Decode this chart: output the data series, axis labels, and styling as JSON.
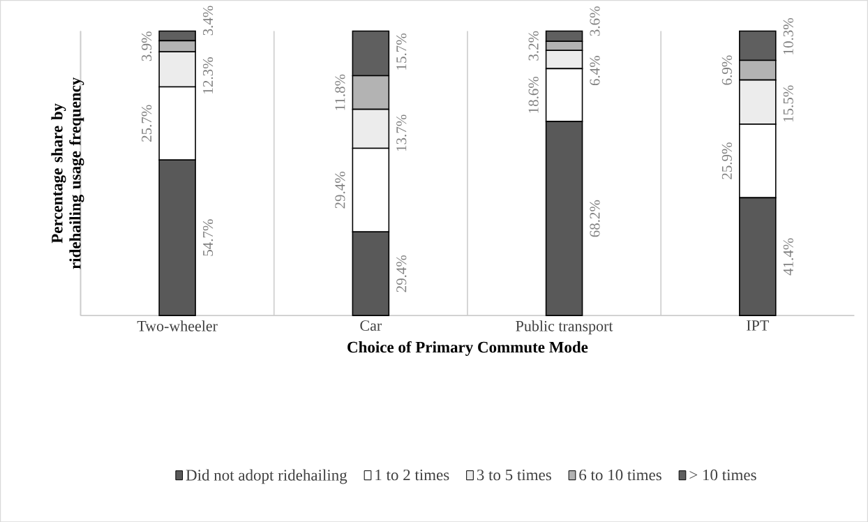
{
  "chart_data": {
    "type": "bar",
    "stacked": true,
    "data_labels": true,
    "xlabel": "Choice of Primary Commute Mode",
    "ylabel": "Percentage share by ridehailing usage frequency",
    "categories": [
      "Two-wheeler",
      "Car",
      "Public transport",
      "IPT"
    ],
    "series": [
      {
        "name": "Did not adopt ridehailing",
        "color": "#595959",
        "values": [
          54.7,
          29.4,
          68.2,
          41.4
        ],
        "value_labels": [
          "54.7%",
          "29.4%",
          "68.2%",
          "41.4%"
        ]
      },
      {
        "name": "1 to 2 times",
        "color": "#ffffff",
        "values": [
          25.7,
          29.4,
          18.6,
          25.9
        ],
        "value_labels": [
          "25.7%",
          "29.4%",
          "18.6%",
          "25.9%"
        ]
      },
      {
        "name": "3 to 5 times",
        "color": "#ececec",
        "values": [
          12.3,
          13.7,
          6.4,
          15.5
        ],
        "value_labels": [
          "12.3%",
          "13.7%",
          "6.4%",
          "15.5%"
        ]
      },
      {
        "name": "6 to 10 times",
        "color": "#b3b3b3",
        "values": [
          3.9,
          11.8,
          3.2,
          6.9
        ],
        "value_labels": [
          "3.9%",
          "11.8%",
          "3.2%",
          "6.9%"
        ]
      },
      {
        "name": "> 10 times",
        "color": "#5f5f5f",
        "values": [
          3.4,
          15.7,
          3.6,
          10.3
        ],
        "value_labels": [
          "3.4%",
          "15.7%",
          "3.6%",
          "10.3%"
        ]
      }
    ],
    "grid": "x",
    "legend": "bottom"
  }
}
